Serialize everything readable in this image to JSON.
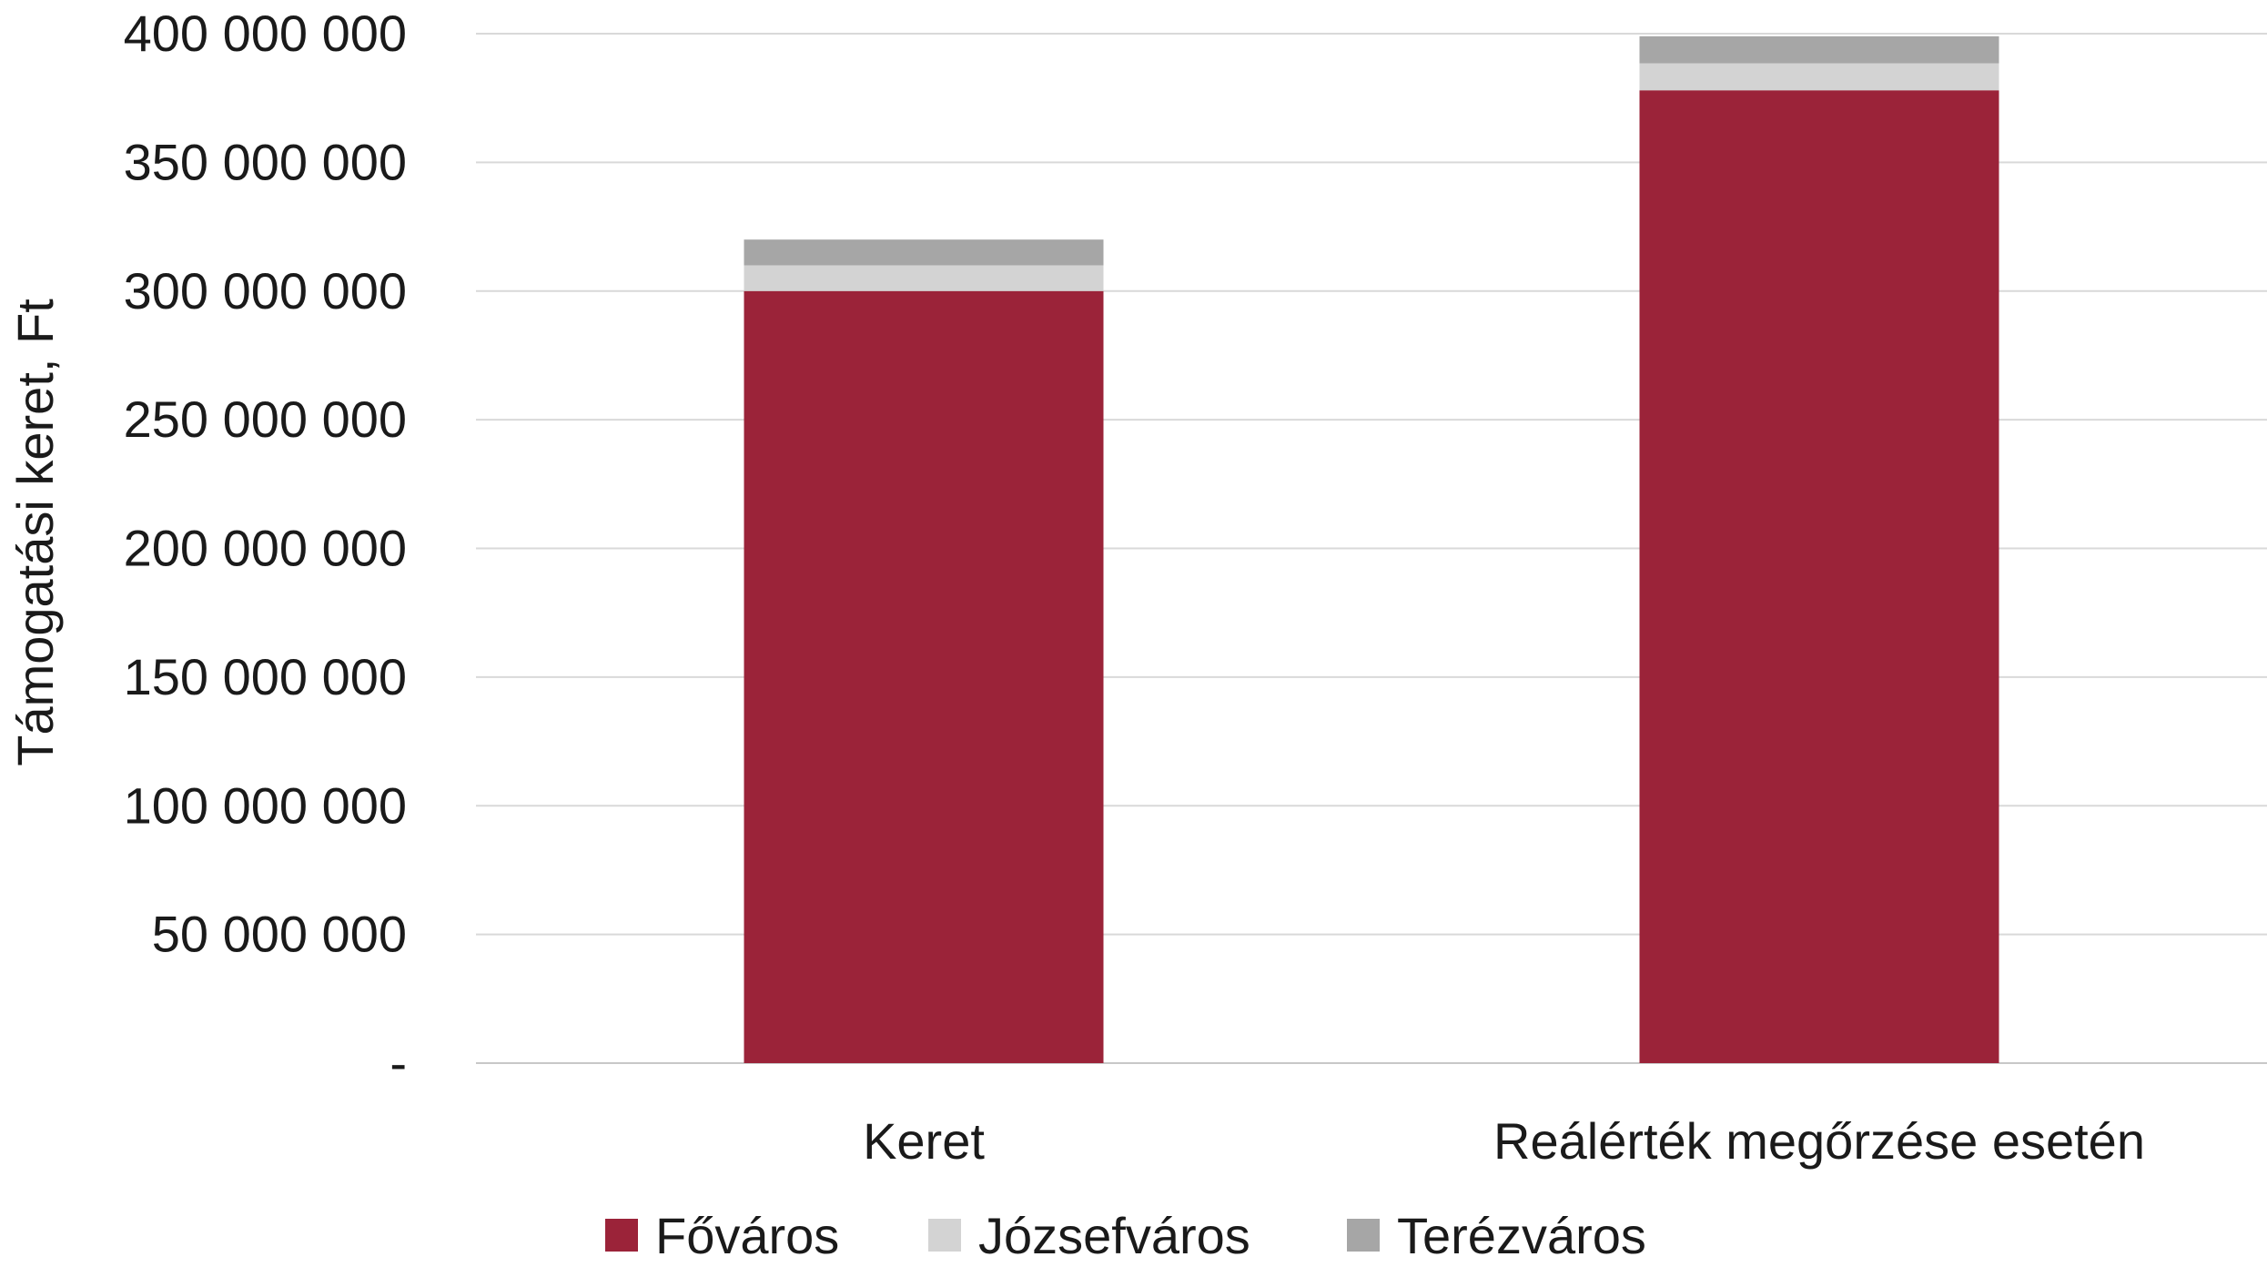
{
  "chart_data": {
    "type": "bar",
    "stacked": true,
    "title": "",
    "xlabel": "",
    "ylabel": "Támogatási keret, Ft",
    "categories": [
      "Keret",
      "Reálérték megőrzése esetén"
    ],
    "ylim": [
      0,
      400000000
    ],
    "yticks": [
      0,
      50000000,
      100000000,
      150000000,
      200000000,
      250000000,
      300000000,
      350000000,
      400000000
    ],
    "ytick_labels": [
      "-",
      "50 000 000",
      "100 000 000",
      "150 000 000",
      "200 000 000",
      "250 000 000",
      "300 000 000",
      "350 000 000",
      "400 000 000"
    ],
    "grid": true,
    "legend_position": "bottom",
    "series": [
      {
        "name": "Főváros",
        "color": "#9B2339",
        "values": [
          300000000,
          378000000
        ]
      },
      {
        "name": "Józsefváros",
        "color": "#D3D3D3",
        "values": [
          10000000,
          10500000
        ]
      },
      {
        "name": "Terézváros",
        "color": "#A6A6A6",
        "values": [
          10000000,
          10500000
        ]
      }
    ]
  }
}
